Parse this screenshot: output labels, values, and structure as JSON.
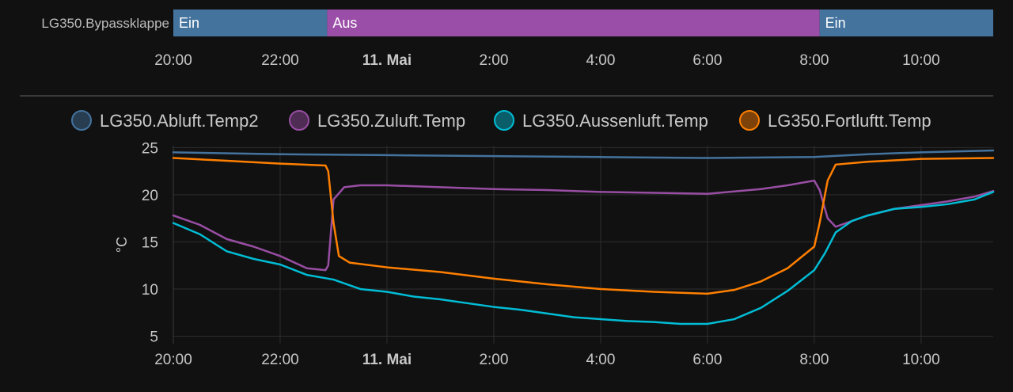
{
  "colors": {
    "background": "#111111",
    "grid": "#2e2e2e",
    "on_state": "#44739e",
    "off_state": "#9b4ea8",
    "abluft": "#44739e",
    "zuluft": "#984ea3",
    "aussenluft": "#00bcd4",
    "fortluft": "#ff7f00"
  },
  "time_axis": {
    "start_hour": 20,
    "end_hour": 35.35,
    "ticks": [
      {
        "hour": 20,
        "label": "20:00",
        "bold": false
      },
      {
        "hour": 22,
        "label": "22:00",
        "bold": false
      },
      {
        "hour": 24,
        "label": "11. Mai",
        "bold": true
      },
      {
        "hour": 26,
        "label": "2:00",
        "bold": false
      },
      {
        "hour": 28,
        "label": "4:00",
        "bold": false
      },
      {
        "hour": 30,
        "label": "6:00",
        "bold": false
      },
      {
        "hour": 32,
        "label": "8:00",
        "bold": false
      },
      {
        "hour": 34,
        "label": "10:00",
        "bold": false
      }
    ]
  },
  "timeline": {
    "entity": "LG350.Bypassklappe",
    "segments": [
      {
        "state": "Ein",
        "start": 20,
        "end": 22.88
      },
      {
        "state": "Aus",
        "start": 22.88,
        "end": 32.1
      },
      {
        "state": "Ein",
        "start": 32.1,
        "end": 35.35
      }
    ]
  },
  "chart_data": {
    "type": "line",
    "ylabel": "°C",
    "ylim": [
      4.2,
      25.2
    ],
    "yticks": [
      5,
      10,
      15,
      20,
      25
    ],
    "grid": true,
    "legend_position": "top",
    "series": [
      {
        "name": "LG350.Abluft.Temp2",
        "color": "#44739e",
        "points": [
          [
            20,
            24.5
          ],
          [
            22,
            24.3
          ],
          [
            24,
            24.2
          ],
          [
            26,
            24.1
          ],
          [
            28,
            24.0
          ],
          [
            30,
            23.9
          ],
          [
            31,
            23.95
          ],
          [
            32,
            24.0
          ],
          [
            33,
            24.3
          ],
          [
            34,
            24.5
          ],
          [
            35.35,
            24.7
          ]
        ]
      },
      {
        "name": "LG350.Zuluft.Temp",
        "color": "#984ea3",
        "points": [
          [
            20,
            17.8
          ],
          [
            20.5,
            16.8
          ],
          [
            21,
            15.3
          ],
          [
            21.5,
            14.5
          ],
          [
            22,
            13.5
          ],
          [
            22.5,
            12.2
          ],
          [
            22.85,
            12.0
          ],
          [
            22.9,
            12.5
          ],
          [
            23.0,
            19.5
          ],
          [
            23.2,
            20.8
          ],
          [
            23.5,
            21.0
          ],
          [
            24,
            21.0
          ],
          [
            25,
            20.8
          ],
          [
            26,
            20.6
          ],
          [
            27,
            20.5
          ],
          [
            28,
            20.3
          ],
          [
            29,
            20.2
          ],
          [
            30,
            20.1
          ],
          [
            31,
            20.6
          ],
          [
            31.5,
            21.0
          ],
          [
            32.0,
            21.5
          ],
          [
            32.1,
            20.5
          ],
          [
            32.25,
            17.5
          ],
          [
            32.4,
            16.6
          ],
          [
            32.7,
            17.2
          ],
          [
            33,
            17.8
          ],
          [
            33.5,
            18.5
          ],
          [
            34,
            18.9
          ],
          [
            34.5,
            19.3
          ],
          [
            35,
            19.8
          ],
          [
            35.35,
            20.4
          ]
        ]
      },
      {
        "name": "LG350.Aussenluft.Temp",
        "color": "#00bcd4",
        "points": [
          [
            20,
            17.0
          ],
          [
            20.5,
            15.8
          ],
          [
            21,
            14.0
          ],
          [
            21.5,
            13.2
          ],
          [
            22,
            12.6
          ],
          [
            22.5,
            11.5
          ],
          [
            23,
            11.0
          ],
          [
            23.5,
            10.0
          ],
          [
            24,
            9.7
          ],
          [
            24.5,
            9.2
          ],
          [
            25,
            8.9
          ],
          [
            25.5,
            8.5
          ],
          [
            26,
            8.1
          ],
          [
            26.5,
            7.8
          ],
          [
            27,
            7.4
          ],
          [
            27.5,
            7.0
          ],
          [
            28,
            6.8
          ],
          [
            28.5,
            6.6
          ],
          [
            29,
            6.5
          ],
          [
            29.5,
            6.3
          ],
          [
            30,
            6.3
          ],
          [
            30.5,
            6.8
          ],
          [
            31,
            8.0
          ],
          [
            31.5,
            9.8
          ],
          [
            32,
            12.0
          ],
          [
            32.2,
            13.8
          ],
          [
            32.4,
            16.0
          ],
          [
            32.7,
            17.2
          ],
          [
            33,
            17.8
          ],
          [
            33.5,
            18.5
          ],
          [
            34,
            18.7
          ],
          [
            34.5,
            19.0
          ],
          [
            35,
            19.5
          ],
          [
            35.35,
            20.3
          ]
        ]
      },
      {
        "name": "LG350.Fortluftt.Temp",
        "color": "#ff7f00",
        "points": [
          [
            20,
            23.9
          ],
          [
            21,
            23.6
          ],
          [
            22,
            23.3
          ],
          [
            22.85,
            23.1
          ],
          [
            22.9,
            22.5
          ],
          [
            23.0,
            17.0
          ],
          [
            23.1,
            13.5
          ],
          [
            23.3,
            12.8
          ],
          [
            24,
            12.3
          ],
          [
            25,
            11.8
          ],
          [
            26,
            11.1
          ],
          [
            27,
            10.5
          ],
          [
            28,
            10.0
          ],
          [
            29,
            9.7
          ],
          [
            30,
            9.5
          ],
          [
            30.5,
            9.9
          ],
          [
            31,
            10.8
          ],
          [
            31.5,
            12.2
          ],
          [
            32,
            14.5
          ],
          [
            32.1,
            17.0
          ],
          [
            32.25,
            21.5
          ],
          [
            32.4,
            23.2
          ],
          [
            33,
            23.5
          ],
          [
            34,
            23.8
          ],
          [
            35.35,
            23.9
          ]
        ]
      }
    ]
  }
}
